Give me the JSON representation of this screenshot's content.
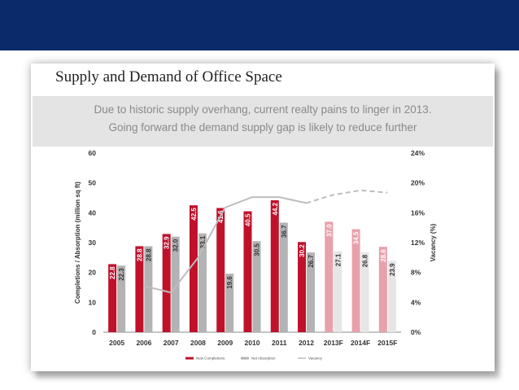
{
  "chart_data": {
    "type": "bar",
    "title": "Supply and Demand of Office Space",
    "subtitle": [
      "Due to historic supply overhang, current realty pains to linger in 2013.",
      "Going forward the demand supply gap is likely to reduce further"
    ],
    "categories": [
      "2005",
      "2006",
      "2007",
      "2008",
      "2009",
      "2010",
      "2011",
      "2012",
      "2013F",
      "2014F",
      "2015F"
    ],
    "series": [
      {
        "name": "New Completions",
        "color": "#c0112b",
        "forecast_color": "#e8a0ab",
        "values": [
          22.8,
          28.8,
          32.9,
          42.5,
          41.6,
          40.5,
          44.2,
          30.2,
          37.0,
          34.5,
          28.6
        ],
        "labels": [
          "22.8",
          "28.8",
          "32.9",
          "42.5",
          "41.6",
          "40.5",
          "44.2",
          "30.2",
          "37.0",
          "34.5",
          "28.6"
        ]
      },
      {
        "name": "Net Absorption",
        "color": "#b3b3b3",
        "forecast_color": "#e6e6e6",
        "values": [
          22.3,
          28.8,
          32.0,
          33.1,
          19.6,
          30.5,
          36.7,
          26.7,
          27.1,
          26.8,
          23.9
        ],
        "labels": [
          "22.3",
          "28.8",
          "32.0",
          "33.1",
          "19.6",
          "30.5",
          "36.7",
          "26.7",
          "27.1",
          "26.8",
          "23.9"
        ]
      },
      {
        "name": "Vacancy",
        "axis": "right",
        "color": "#bdbdbd",
        "values": [
          null,
          6.2,
          5.3,
          10.0,
          16.7,
          18.1,
          18.1,
          17.3,
          18.4,
          19.0,
          18.7
        ]
      }
    ],
    "forecast_start_index": 8,
    "ylabel": "Completions / Absorption (million sq ft)",
    "ylabel_right": "Vacancy (%)",
    "ylim": [
      0,
      60
    ],
    "yticks": [
      "0",
      "10",
      "20",
      "30",
      "40",
      "50",
      "60"
    ],
    "ylim_right": [
      0,
      24
    ],
    "yticks_right": [
      "0%",
      "4%",
      "8%",
      "12%",
      "16%",
      "20%",
      "24%"
    ],
    "legend": [
      "New Completions",
      "Net Absorption",
      "Vacancy"
    ],
    "legend_position": "bottom"
  }
}
